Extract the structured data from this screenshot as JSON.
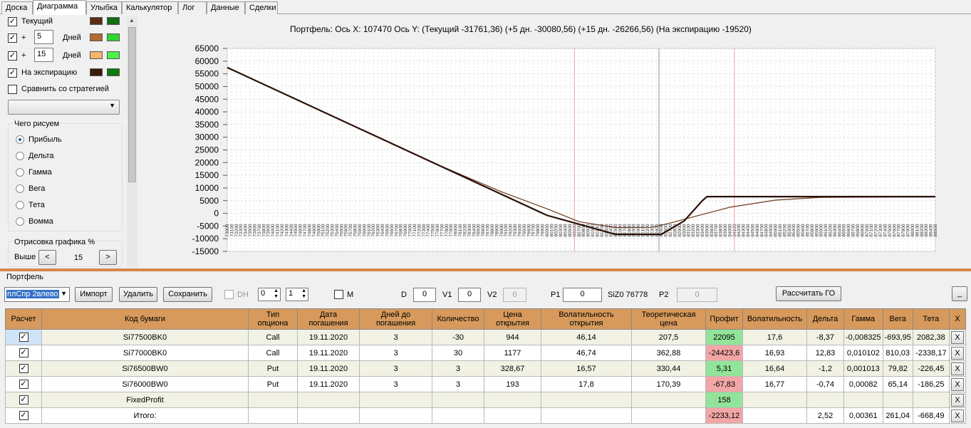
{
  "tabs": [
    {
      "label": "Доска"
    },
    {
      "label": "Диаграмма"
    },
    {
      "label": "Улыбка"
    },
    {
      "label": "Калькулятор"
    },
    {
      "label": "Лог"
    },
    {
      "label": "Данные"
    },
    {
      "label": "Сделки"
    }
  ],
  "left_panel": {
    "current_label": "Текущий",
    "plus1": "+",
    "days1": "5",
    "days_label1": "Дней",
    "plus2": "+",
    "days2": "15",
    "days_label2": "Дней",
    "expiry_label": "На экспирацию",
    "compare_label": "Сравнить со стратегией",
    "what_group": "Чего рисуем",
    "radios": [
      "Прибыль",
      "Дельта",
      "Гамма",
      "Вега",
      "Тета",
      "Вомма"
    ],
    "draw_group": "Отрисовка графика %",
    "above_label": "Выше",
    "percent": "15",
    "colors": {
      "current_a": "#5b2d16",
      "current_b": "#0f6f10",
      "d5_a": "#b26a2e",
      "d5_b": "#2ed62e",
      "d15_a": "#f7b46b",
      "d15_b": "#4cf24c",
      "exp_a": "#3c1a08",
      "exp_b": "#0a7a0a"
    }
  },
  "chart_header": "Портфель: Ось X:  107470 Ось Y:  (Текущий -31761,36)  (+5 дн. -30080,56)  (+15 дн. -26266,56)  (На экспирацию -19520)",
  "chart_data": {
    "type": "line",
    "x_range": [
      73000,
      88500
    ],
    "ylim": [
      -15000,
      65000
    ],
    "y_ticks": [
      "65000",
      "60000",
      "55000",
      "50000",
      "45000",
      "40000",
      "35000",
      "30000",
      "25000",
      "20000",
      "15000",
      "10000",
      "5000",
      "0",
      "-5000",
      "-10000",
      "-15000"
    ],
    "series": [
      {
        "name": "Текущий",
        "color": "#6b3a1e",
        "points": [
          [
            73000,
            57500
          ],
          [
            74500,
            45000
          ],
          [
            76000,
            32500
          ],
          [
            77500,
            20000
          ],
          [
            79000,
            8500
          ],
          [
            80000,
            1800
          ],
          [
            80700,
            -3300
          ],
          [
            81500,
            -5600
          ],
          [
            82300,
            -5500
          ],
          [
            82700,
            -3800
          ],
          [
            83300,
            -900
          ],
          [
            84000,
            2400
          ],
          [
            85000,
            5200
          ],
          [
            86000,
            6300
          ],
          [
            88500,
            6500
          ]
        ]
      },
      {
        "name": "На экспирацию",
        "color": "#2a1004",
        "points": [
          [
            73000,
            57500
          ],
          [
            74500,
            45000
          ],
          [
            76000,
            32500
          ],
          [
            77500,
            20000
          ],
          [
            79000,
            7500
          ],
          [
            80000,
            -800
          ],
          [
            81500,
            -8300
          ],
          [
            82500,
            -8300
          ],
          [
            83000,
            -3000
          ],
          [
            83400,
            5000
          ],
          [
            83500,
            6600
          ],
          [
            88500,
            6600
          ]
        ]
      }
    ],
    "vlines": [
      {
        "x": 80600,
        "color": "#f5a0a0"
      },
      {
        "x": 82450,
        "color": "#8090a0"
      },
      {
        "x": 84100,
        "color": "#f5a0a0"
      }
    ]
  },
  "portfolio_label": "Портфель",
  "toolbar": {
    "strategy": "плСпр 2влево",
    "import": "Импорт",
    "delete": "Удалить",
    "save": "Сохранить",
    "dh": "DH",
    "spin1": "0",
    "spin2": "1",
    "m": "M",
    "d_label": "D",
    "d_val": "0",
    "v1_label": "V1",
    "v1_val": "0",
    "v2_label": "V2",
    "v2_val": "0",
    "p1_label": "P1",
    "p1_val": "0",
    "siz": "SiZ0 76778",
    "p2_label": "P2",
    "p2_val": "0",
    "calc": "Рассчитать ГО",
    "collapse": "_"
  },
  "table": {
    "headers": [
      "Расчет",
      "Код бумаги",
      "Тип опциона",
      "Дата погашения",
      "Дней до погашения",
      "Количество",
      "Цена открытия",
      "Волатильность открытия",
      "Теоретическая цена",
      "Профит",
      "Волатильность",
      "Дельта",
      "Гамма",
      "Вега",
      "Тета",
      "X"
    ],
    "rows": [
      {
        "code": "Si77500BK0",
        "type": "Call",
        "date": "19.11.2020",
        "days": "3",
        "qty": "-30",
        "open": "944",
        "vol_open": "46,14",
        "theo": "207,5",
        "profit": "22095",
        "vol": "17,6",
        "delta": "-8,37",
        "gamma": "-0,008325",
        "vega": "-693,95",
        "theta": "2082,38",
        "pc": "g",
        "x": "X"
      },
      {
        "code": "Si77000BK0",
        "type": "Call",
        "date": "19.11.2020",
        "days": "3",
        "qty": "30",
        "open": "1177",
        "vol_open": "46,74",
        "theo": "362,88",
        "profit": "-24423,6",
        "vol": "16,93",
        "delta": "12,83",
        "gamma": "0,010102",
        "vega": "810,03",
        "theta": "-2338,17",
        "pc": "r",
        "x": "X"
      },
      {
        "code": "Si76500BW0",
        "type": "Put",
        "date": "19.11.2020",
        "days": "3",
        "qty": "3",
        "open": "328,67",
        "vol_open": "16,57",
        "theo": "330,44",
        "profit": "5,31",
        "vol": "16,64",
        "delta": "-1,2",
        "gamma": "0,001013",
        "vega": "79,82",
        "theta": "-226,45",
        "pc": "g",
        "x": "X"
      },
      {
        "code": "Si76000BW0",
        "type": "Put",
        "date": "19.11.2020",
        "days": "3",
        "qty": "3",
        "open": "193",
        "vol_open": "17,8",
        "theo": "170,39",
        "profit": "-67,83",
        "vol": "16,77",
        "delta": "-0,74",
        "gamma": "0,00082",
        "vega": "65,14",
        "theta": "-186,25",
        "pc": "r",
        "x": "X"
      },
      {
        "code": "FixedProfit",
        "type": "",
        "date": "",
        "days": "",
        "qty": "",
        "open": "",
        "vol_open": "",
        "theo": "",
        "profit": "158",
        "vol": "",
        "delta": "",
        "gamma": "",
        "vega": "",
        "theta": "",
        "pc": "g",
        "x": "X"
      },
      {
        "code": "Итого:",
        "type": "",
        "date": "",
        "days": "",
        "qty": "",
        "open": "",
        "vol_open": "",
        "theo": "",
        "profit": "-2233,12",
        "vol": "",
        "delta": "2,52",
        "gamma": "0,00361",
        "vega": "261,04",
        "theta": "-668,49",
        "pc": "r",
        "x": "X"
      }
    ]
  }
}
